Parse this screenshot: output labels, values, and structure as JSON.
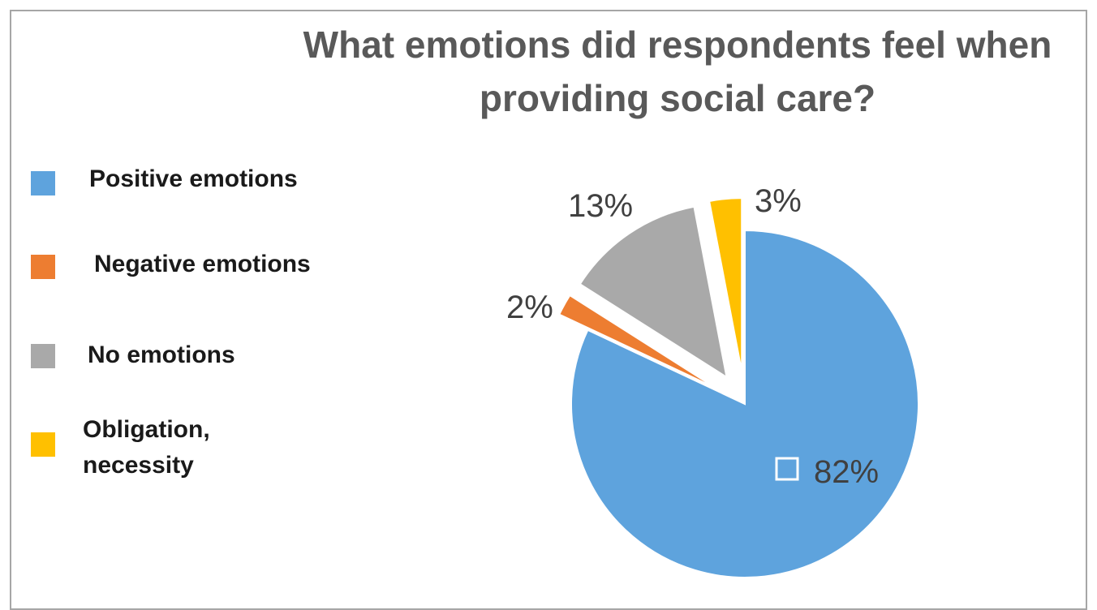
{
  "chart_data": {
    "type": "pie",
    "title_lines": [
      "What emotions did respondents feel when",
      "providing social care?"
    ],
    "categories": [
      "Positive emotions",
      "Negative emotions",
      "No emotions",
      "Obligation, necessity"
    ],
    "legend_lines": [
      [
        "Positive emotions"
      ],
      [
        "Negative emotions"
      ],
      [
        "No emotions"
      ],
      [
        "Obligation,",
        "necessity"
      ]
    ],
    "values": [
      82,
      2,
      13,
      3
    ],
    "data_labels": [
      "82%",
      "2%",
      "13%",
      "3%"
    ],
    "colors": [
      "#5ea3dd",
      "#ed7d31",
      "#a9a9a9",
      "#ffc000"
    ],
    "legend_position": "left"
  }
}
